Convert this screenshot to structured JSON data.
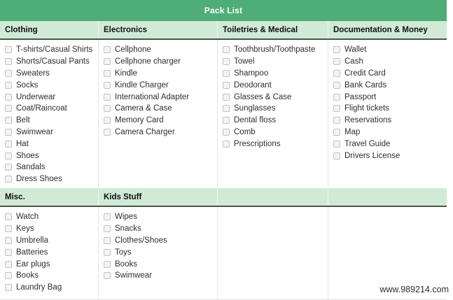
{
  "title": "Pack List",
  "watermark": "www.989214.com",
  "colors": {
    "banner_green": "#4fae78",
    "banner_edge": "#41a069",
    "header_green": "#d0ead6",
    "header_border": "#4b544e",
    "grid_line": "#e0e8e1",
    "text": "#2e2e2e"
  },
  "sections": [
    {
      "columns": [
        {
          "header": "Clothing",
          "items": [
            "T-shirts/Casual Shirts",
            "Shorts/Casual Pants",
            "Sweaters",
            "Socks",
            "Underwear",
            "Coat/Raincoat",
            "Belt",
            "Swimwear",
            "Hat",
            "Shoes",
            "Sandals",
            "Dress Shoes"
          ]
        },
        {
          "header": "Electronics",
          "items": [
            "Cellphone",
            "Cellphone charger",
            "Kindle",
            "Kindle Charger",
            "International Adapter",
            "Camera & Case",
            "Memory Card",
            "Camera Charger"
          ]
        },
        {
          "header": "Toiletries & Medical",
          "items": [
            "Toothbrush/Toothpaste",
            "Towel",
            "Shampoo",
            "Deodorant",
            "Glasses & Case",
            "Sunglasses",
            "Dental floss",
            "Comb",
            "Prescriptions"
          ]
        },
        {
          "header": "Documentation & Money",
          "items": [
            "Wallet",
            "Cash",
            "Credit Card",
            "Bank Cards",
            "Passport",
            "Flight tickets",
            "Reservations",
            "Map",
            "Travel Guide",
            "Drivers License"
          ]
        }
      ]
    },
    {
      "columns": [
        {
          "header": "Misc.",
          "items": [
            "Watch",
            "Keys",
            "Umbrella",
            "Batteries",
            "Ear plugs",
            "Books",
            "Laundry Bag"
          ]
        },
        {
          "header": "Kids Stuff",
          "items": [
            "Wipes",
            "Snacks",
            "Clothes/Shoes",
            "Toys",
            "Books",
            "Swimwear"
          ]
        },
        {
          "header": "",
          "items": []
        },
        {
          "header": "",
          "items": []
        }
      ]
    }
  ]
}
